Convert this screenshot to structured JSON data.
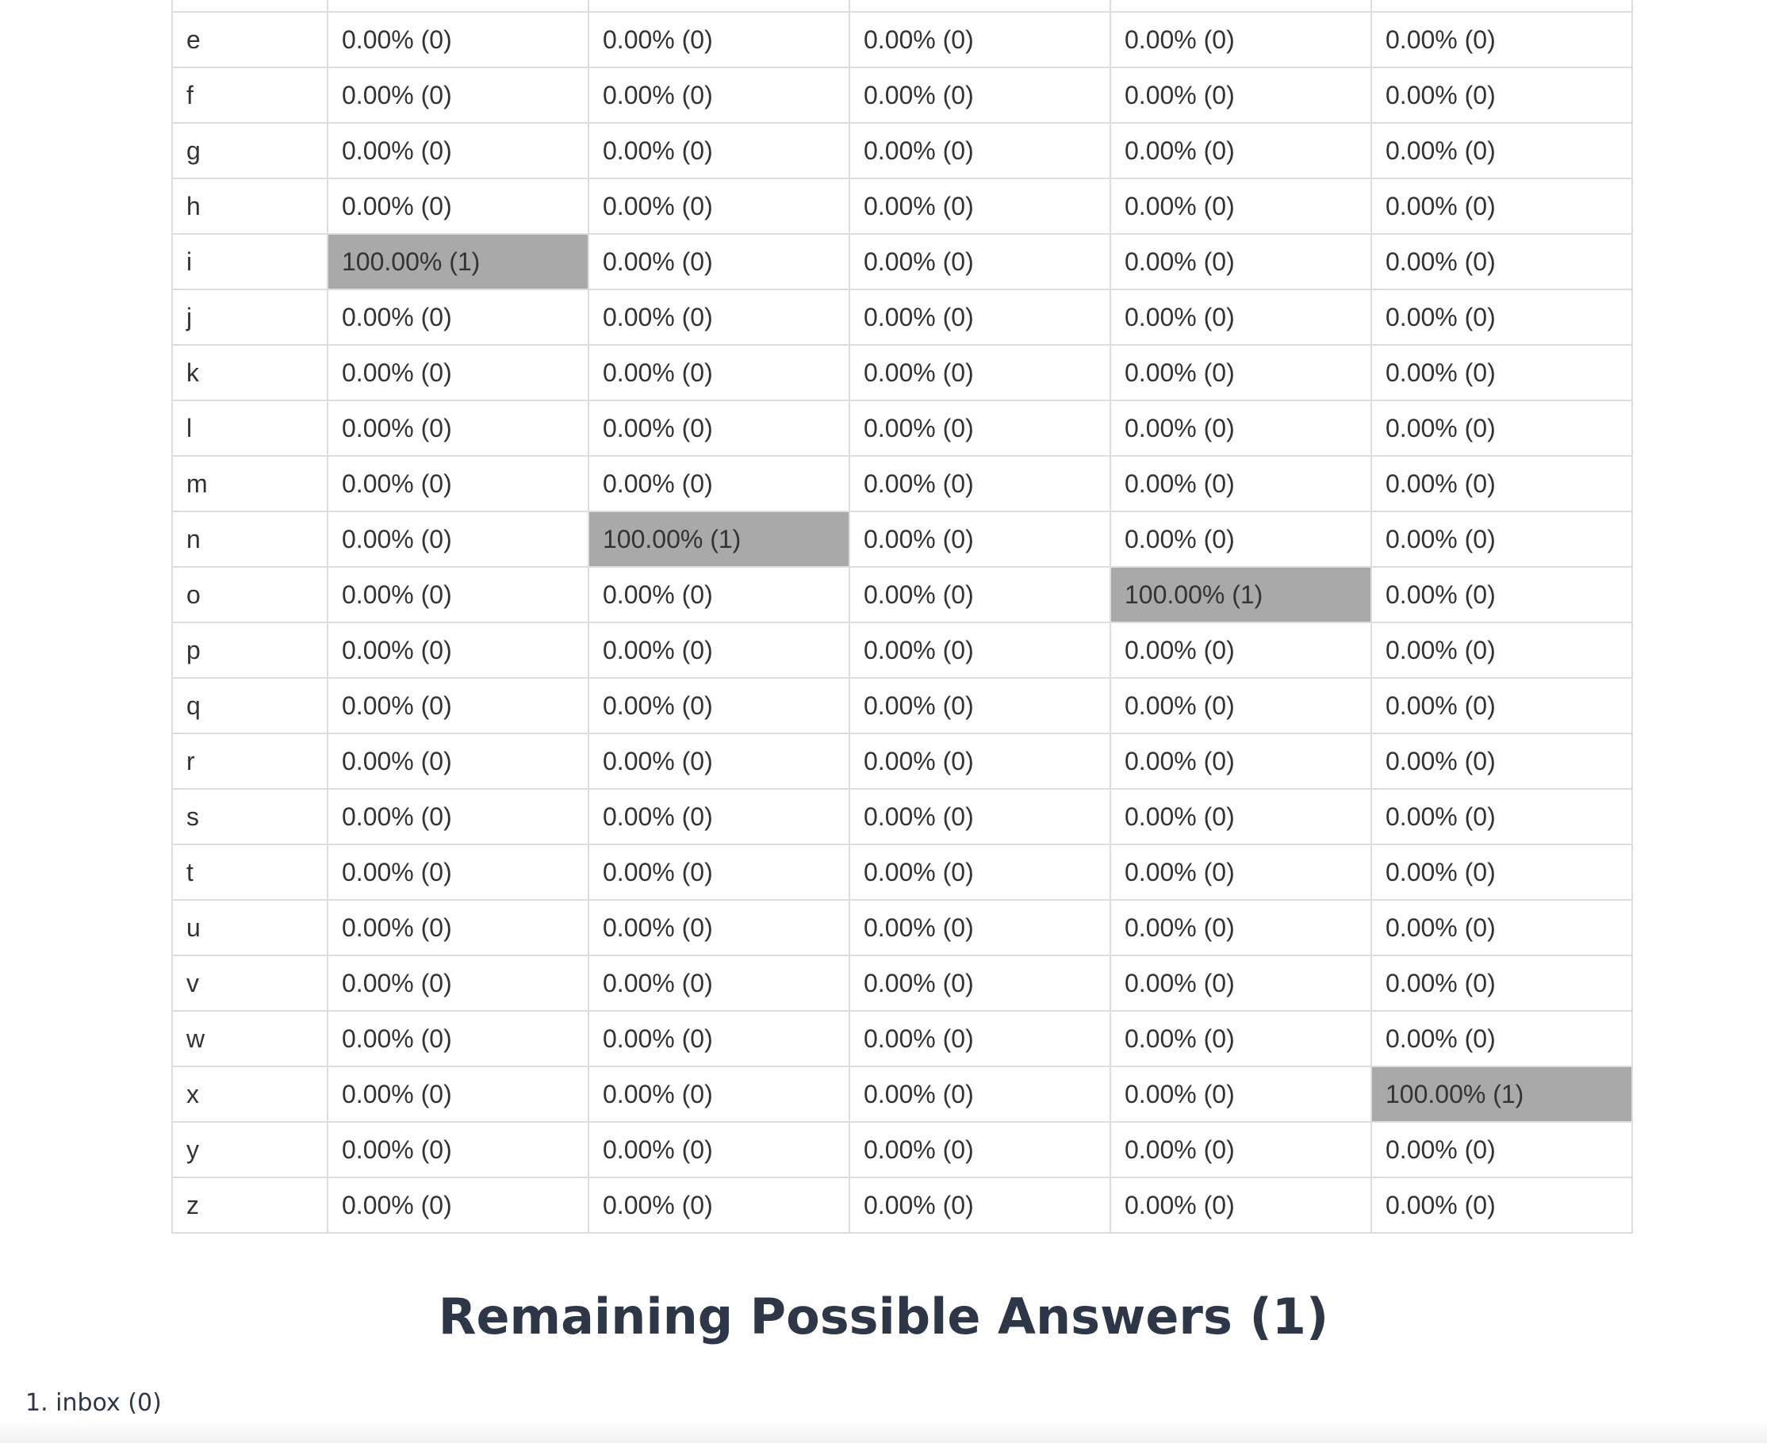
{
  "table": {
    "columns": 5,
    "rows": [
      {
        "letter": "",
        "cells": [
          "",
          "",
          "",
          "",
          ""
        ],
        "hits": []
      },
      {
        "letter": "e",
        "cells": [
          "0.00% (0)",
          "0.00% (0)",
          "0.00% (0)",
          "0.00% (0)",
          "0.00% (0)"
        ],
        "hits": []
      },
      {
        "letter": "f",
        "cells": [
          "0.00% (0)",
          "0.00% (0)",
          "0.00% (0)",
          "0.00% (0)",
          "0.00% (0)"
        ],
        "hits": []
      },
      {
        "letter": "g",
        "cells": [
          "0.00% (0)",
          "0.00% (0)",
          "0.00% (0)",
          "0.00% (0)",
          "0.00% (0)"
        ],
        "hits": []
      },
      {
        "letter": "h",
        "cells": [
          "0.00% (0)",
          "0.00% (0)",
          "0.00% (0)",
          "0.00% (0)",
          "0.00% (0)"
        ],
        "hits": []
      },
      {
        "letter": "i",
        "cells": [
          "100.00% (1)",
          "0.00% (0)",
          "0.00% (0)",
          "0.00% (0)",
          "0.00% (0)"
        ],
        "hits": [
          0
        ]
      },
      {
        "letter": "j",
        "cells": [
          "0.00% (0)",
          "0.00% (0)",
          "0.00% (0)",
          "0.00% (0)",
          "0.00% (0)"
        ],
        "hits": []
      },
      {
        "letter": "k",
        "cells": [
          "0.00% (0)",
          "0.00% (0)",
          "0.00% (0)",
          "0.00% (0)",
          "0.00% (0)"
        ],
        "hits": []
      },
      {
        "letter": "l",
        "cells": [
          "0.00% (0)",
          "0.00% (0)",
          "0.00% (0)",
          "0.00% (0)",
          "0.00% (0)"
        ],
        "hits": []
      },
      {
        "letter": "m",
        "cells": [
          "0.00% (0)",
          "0.00% (0)",
          "0.00% (0)",
          "0.00% (0)",
          "0.00% (0)"
        ],
        "hits": []
      },
      {
        "letter": "n",
        "cells": [
          "0.00% (0)",
          "100.00% (1)",
          "0.00% (0)",
          "0.00% (0)",
          "0.00% (0)"
        ],
        "hits": [
          1
        ]
      },
      {
        "letter": "o",
        "cells": [
          "0.00% (0)",
          "0.00% (0)",
          "0.00% (0)",
          "100.00% (1)",
          "0.00% (0)"
        ],
        "hits": [
          3
        ]
      },
      {
        "letter": "p",
        "cells": [
          "0.00% (0)",
          "0.00% (0)",
          "0.00% (0)",
          "0.00% (0)",
          "0.00% (0)"
        ],
        "hits": []
      },
      {
        "letter": "q",
        "cells": [
          "0.00% (0)",
          "0.00% (0)",
          "0.00% (0)",
          "0.00% (0)",
          "0.00% (0)"
        ],
        "hits": []
      },
      {
        "letter": "r",
        "cells": [
          "0.00% (0)",
          "0.00% (0)",
          "0.00% (0)",
          "0.00% (0)",
          "0.00% (0)"
        ],
        "hits": []
      },
      {
        "letter": "s",
        "cells": [
          "0.00% (0)",
          "0.00% (0)",
          "0.00% (0)",
          "0.00% (0)",
          "0.00% (0)"
        ],
        "hits": []
      },
      {
        "letter": "t",
        "cells": [
          "0.00% (0)",
          "0.00% (0)",
          "0.00% (0)",
          "0.00% (0)",
          "0.00% (0)"
        ],
        "hits": []
      },
      {
        "letter": "u",
        "cells": [
          "0.00% (0)",
          "0.00% (0)",
          "0.00% (0)",
          "0.00% (0)",
          "0.00% (0)"
        ],
        "hits": []
      },
      {
        "letter": "v",
        "cells": [
          "0.00% (0)",
          "0.00% (0)",
          "0.00% (0)",
          "0.00% (0)",
          "0.00% (0)"
        ],
        "hits": []
      },
      {
        "letter": "w",
        "cells": [
          "0.00% (0)",
          "0.00% (0)",
          "0.00% (0)",
          "0.00% (0)",
          "0.00% (0)"
        ],
        "hits": []
      },
      {
        "letter": "x",
        "cells": [
          "0.00% (0)",
          "0.00% (0)",
          "0.00% (0)",
          "0.00% (0)",
          "100.00% (1)"
        ],
        "hits": [
          4
        ]
      },
      {
        "letter": "y",
        "cells": [
          "0.00% (0)",
          "0.00% (0)",
          "0.00% (0)",
          "0.00% (0)",
          "0.00% (0)"
        ],
        "hits": []
      },
      {
        "letter": "z",
        "cells": [
          "0.00% (0)",
          "0.00% (0)",
          "0.00% (0)",
          "0.00% (0)",
          "0.00% (0)"
        ],
        "hits": []
      }
    ]
  },
  "answers": {
    "title": "Remaining Possible Answers (1)",
    "items": [
      "1. inbox (0)"
    ]
  },
  "colors": {
    "hit_cell": "#a9a9a9",
    "border": "#dddddd",
    "heading": "#2d3748"
  }
}
